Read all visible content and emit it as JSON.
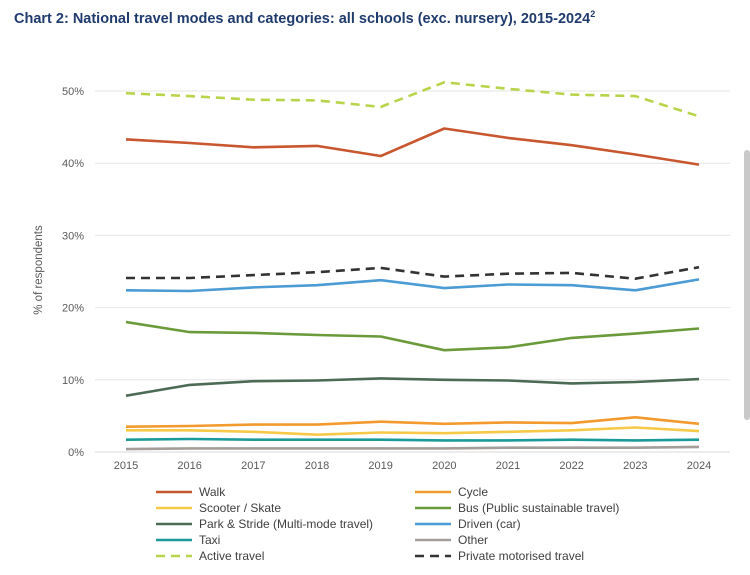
{
  "title": "Chart 2: National travel modes and categories: all schools (exc. nursery), 2015-2024",
  "title_footnote": "2",
  "chart_data": {
    "type": "line",
    "title": "Chart 2: National travel modes and categories: all schools (exc. nursery), 2015-2024",
    "xlabel": "",
    "ylabel": "% of respondents",
    "x": [
      "2015",
      "2016",
      "2017",
      "2018",
      "2019",
      "2020",
      "2021",
      "2022",
      "2023",
      "2024"
    ],
    "ylim": [
      0,
      50
    ],
    "yticks": [
      0,
      10,
      20,
      30,
      40,
      50
    ],
    "ytick_labels": [
      "0%",
      "10%",
      "20%",
      "30%",
      "40%",
      "50%"
    ],
    "grid": true,
    "legend_position": "bottom",
    "series": [
      {
        "name": "Walk",
        "color": "#c8562f",
        "dash": "solid",
        "values": [
          43.3,
          42.8,
          42.2,
          42.4,
          41.0,
          44.8,
          43.5,
          42.5,
          41.2,
          39.8
        ]
      },
      {
        "name": "Cycle",
        "color": "#f29a2e",
        "dash": "solid",
        "values": [
          3.5,
          3.6,
          3.8,
          3.8,
          4.2,
          3.9,
          4.1,
          4.0,
          4.8,
          3.9
        ]
      },
      {
        "name": "Scooter / Skate",
        "color": "#f7c948",
        "dash": "solid",
        "values": [
          3.0,
          3.0,
          2.8,
          2.4,
          2.7,
          2.6,
          2.8,
          3.0,
          3.4,
          2.9
        ]
      },
      {
        "name": "Bus (Public sustainable travel)",
        "color": "#6a9a3a",
        "dash": "solid",
        "values": [
          18.0,
          16.6,
          16.5,
          16.2,
          16.0,
          14.1,
          14.5,
          15.8,
          16.4,
          17.1
        ]
      },
      {
        "name": "Park & Stride (Multi-mode travel)",
        "color": "#4b6b55",
        "dash": "solid",
        "values": [
          7.8,
          9.3,
          9.8,
          9.9,
          10.2,
          10.0,
          9.9,
          9.5,
          9.7,
          10.1
        ]
      },
      {
        "name": "Driven (car)",
        "color": "#4b9bd4",
        "dash": "solid",
        "values": [
          22.4,
          22.3,
          22.8,
          23.1,
          23.8,
          22.7,
          23.2,
          23.1,
          22.4,
          23.9
        ]
      },
      {
        "name": "Taxi",
        "color": "#1a9a9a",
        "dash": "solid",
        "values": [
          1.7,
          1.8,
          1.7,
          1.7,
          1.7,
          1.6,
          1.6,
          1.7,
          1.6,
          1.7
        ]
      },
      {
        "name": "Other",
        "color": "#a39e9a",
        "dash": "solid",
        "values": [
          0.4,
          0.5,
          0.5,
          0.5,
          0.5,
          0.5,
          0.6,
          0.6,
          0.6,
          0.7
        ]
      },
      {
        "name": "Active travel",
        "color": "#b8d44a",
        "dash": "dashed",
        "values": [
          49.7,
          49.3,
          48.8,
          48.7,
          47.8,
          51.2,
          50.3,
          49.5,
          49.3,
          46.5
        ]
      },
      {
        "name": "Private motorised travel",
        "color": "#333333",
        "dash": "dashed",
        "values": [
          24.1,
          24.1,
          24.5,
          24.9,
          25.5,
          24.3,
          24.7,
          24.8,
          24.0,
          25.6
        ]
      }
    ]
  }
}
